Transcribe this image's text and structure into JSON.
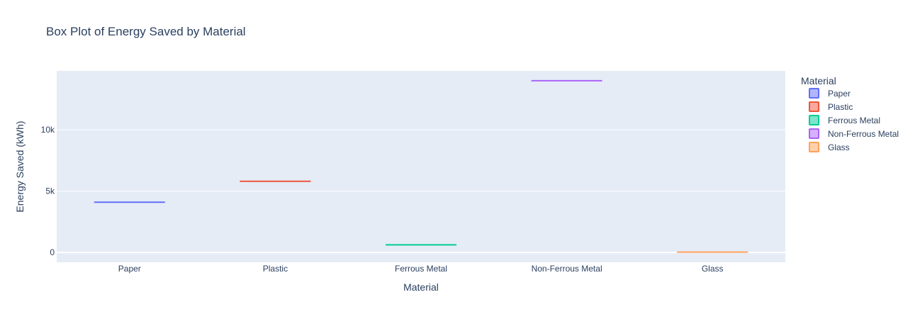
{
  "chart_data": {
    "type": "box",
    "title": "Box Plot of Energy Saved by Material",
    "xlabel": "Material",
    "ylabel": "Energy Saved (kWh)",
    "categories": [
      "Paper",
      "Plastic",
      "Ferrous Metal",
      "Non-Ferrous Metal",
      "Glass"
    ],
    "series": [
      {
        "name": "Paper",
        "values": [
          4100
        ],
        "color": "#636efa"
      },
      {
        "name": "Plastic",
        "values": [
          5800
        ],
        "color": "#ef553b"
      },
      {
        "name": "Ferrous Metal",
        "values": [
          620
        ],
        "color": "#00cc96"
      },
      {
        "name": "Non-Ferrous Metal",
        "values": [
          14000
        ],
        "color": "#ab63fa"
      },
      {
        "name": "Glass",
        "values": [
          30
        ],
        "color": "#ffa15a"
      }
    ],
    "ylim": [
      -800,
      14800
    ],
    "yticks": [
      {
        "value": 0,
        "label": "0"
      },
      {
        "value": 5000,
        "label": "5k"
      },
      {
        "value": 10000,
        "label": "10k"
      }
    ],
    "legend": {
      "title": "Material",
      "position": "right"
    },
    "plot_background": "#e5ecf6",
    "grid": true
  }
}
